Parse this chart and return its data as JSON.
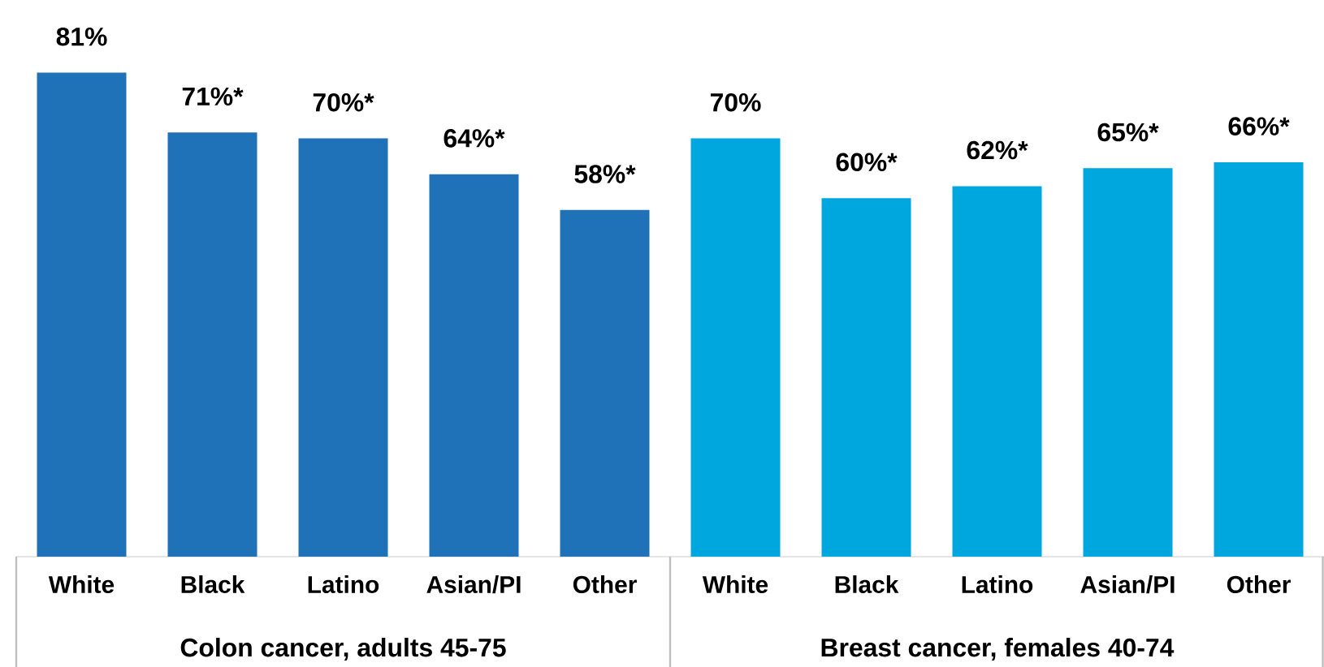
{
  "chart_data": {
    "type": "bar",
    "categories": [
      "White",
      "Black",
      "Latino",
      "Asian/PI",
      "Other",
      "White",
      "Black",
      "Latino",
      "Asian/PI",
      "Other"
    ],
    "values": [
      81,
      71,
      70,
      64,
      58,
      70,
      60,
      62,
      65,
      66
    ],
    "value_labels": [
      "81%",
      "71%*",
      "70%*",
      "64%*",
      "58%*",
      "70%",
      "60%*",
      "62%*",
      "65%*",
      "66%*"
    ],
    "colors": [
      "#1f71b8",
      "#1f71b8",
      "#1f71b8",
      "#1f71b8",
      "#1f71b8",
      "#00a7de",
      "#00a7de",
      "#00a7de",
      "#00a7de",
      "#00a7de"
    ],
    "annotations": [
      "Colon cancer, adults 45-75",
      "Breast cancer, females 40-74"
    ]
  }
}
